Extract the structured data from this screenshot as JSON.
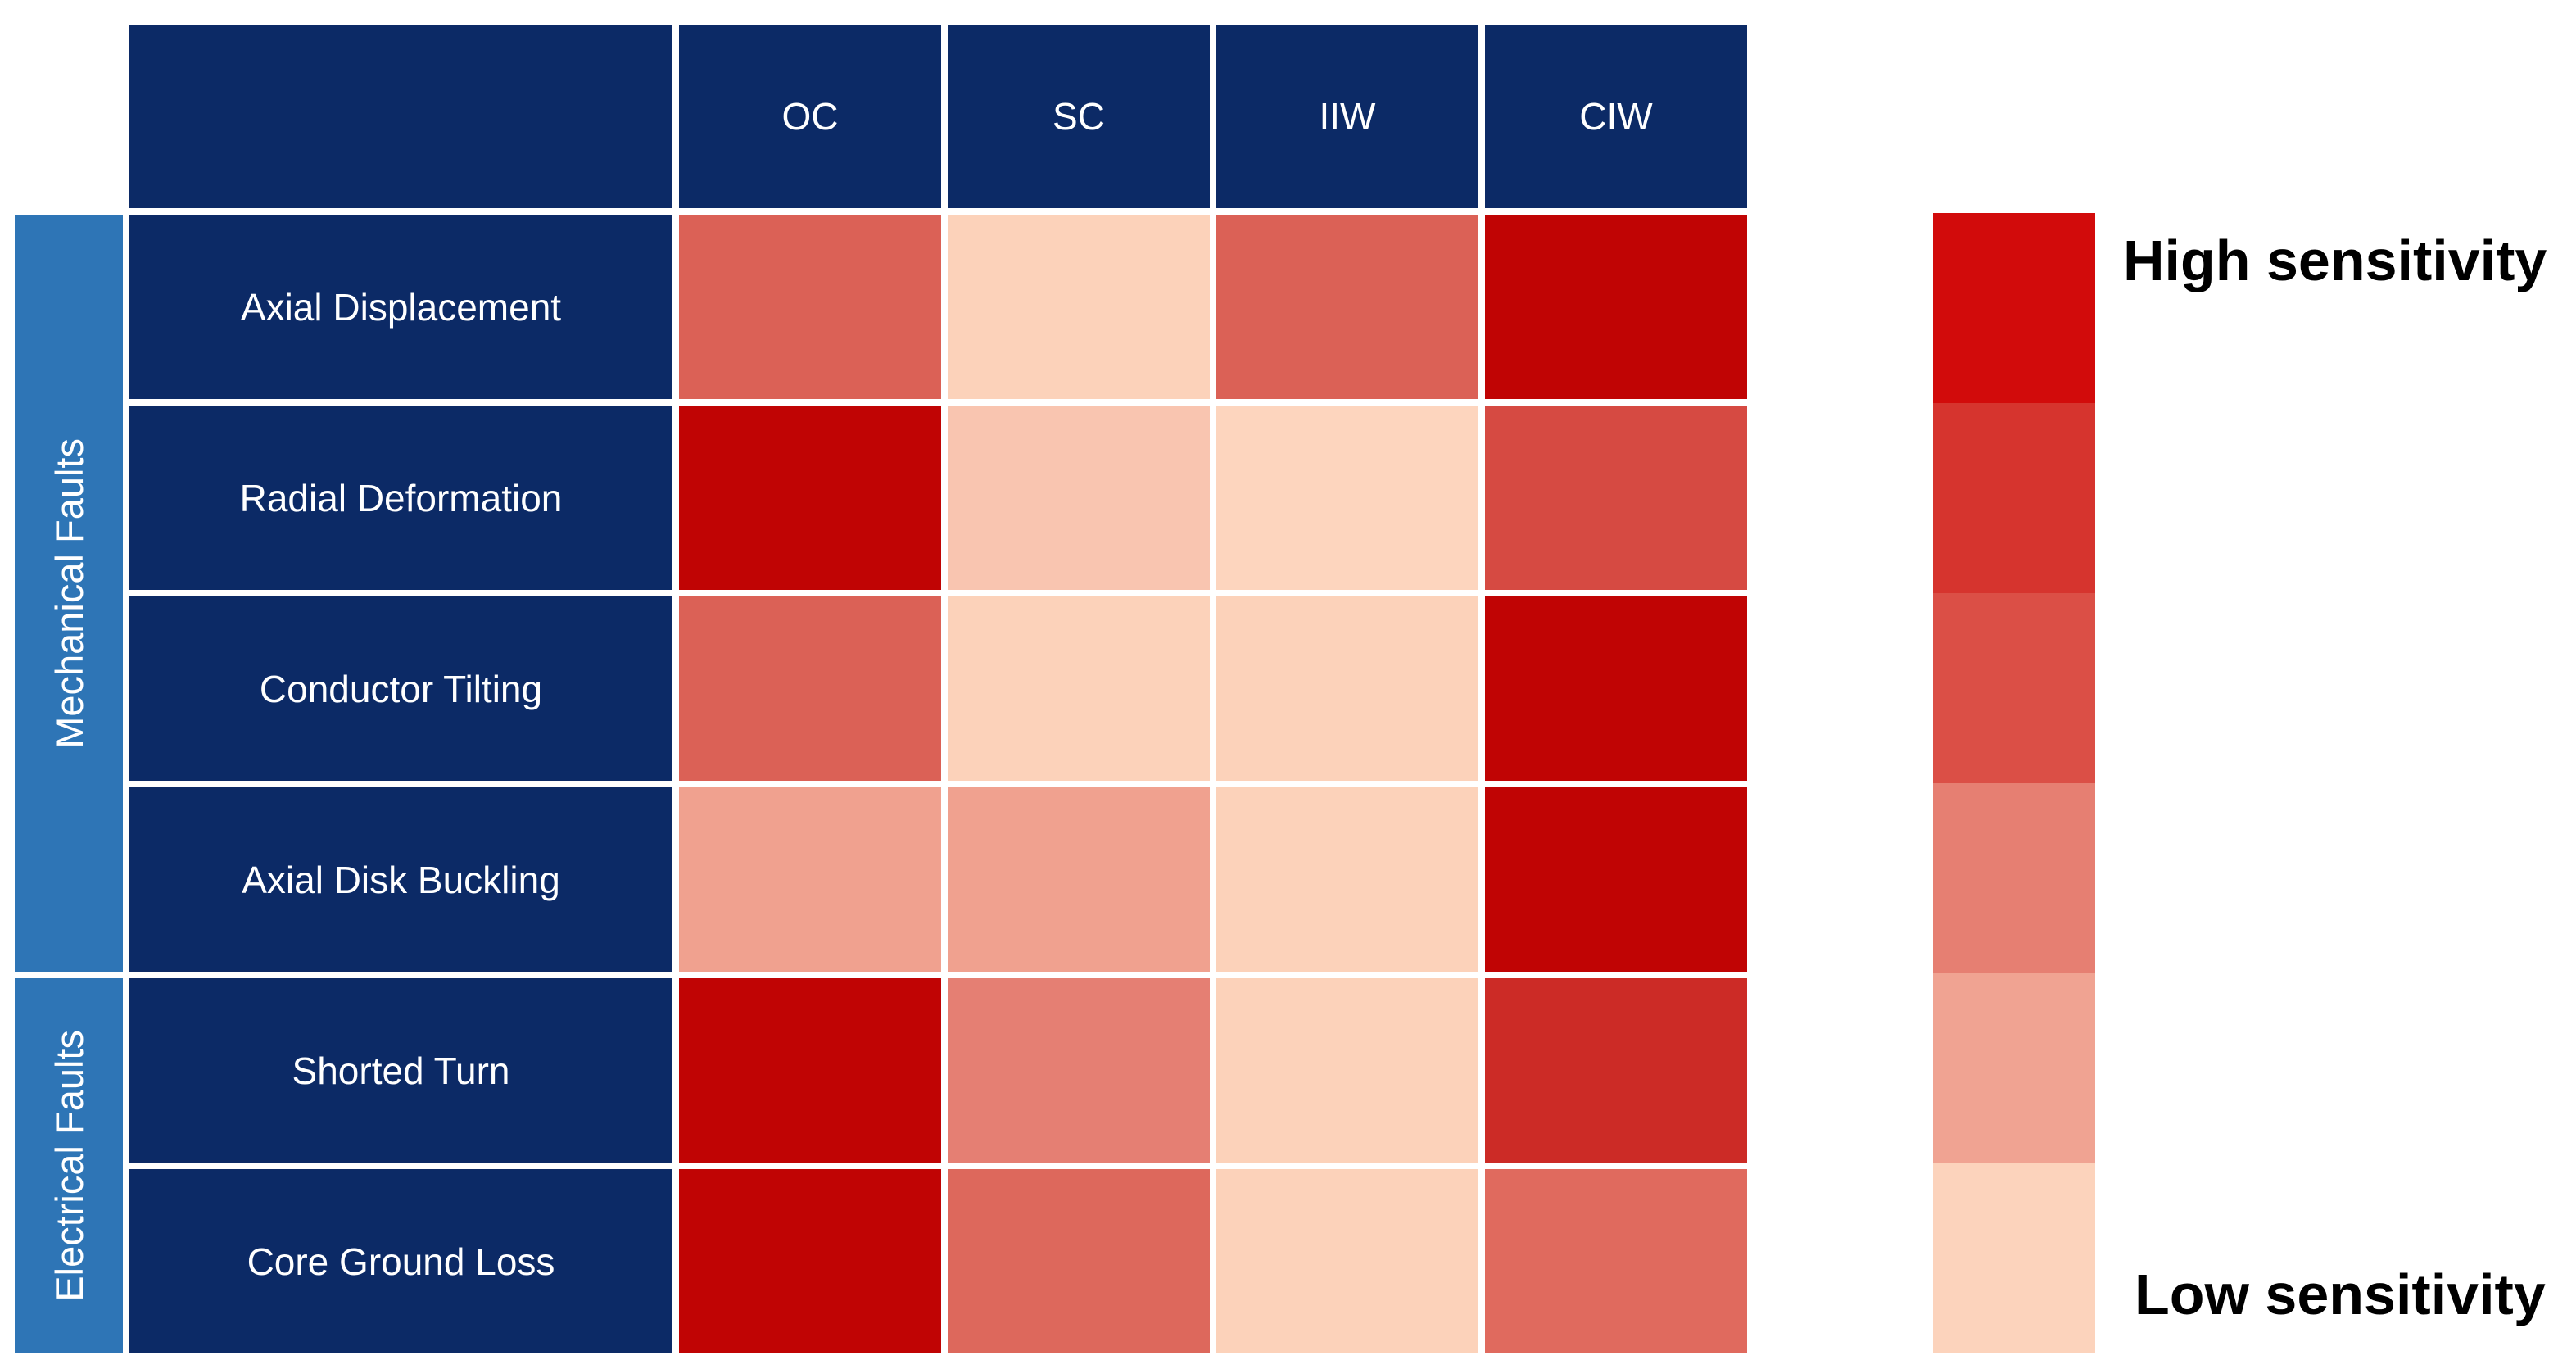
{
  "table": {
    "corner_label": "",
    "columns": [
      "OC",
      "SC",
      "IIW",
      "CIW"
    ],
    "groups": [
      {
        "label": "Mechanical Faults",
        "rowspan": 4
      },
      {
        "label": "Electrical Faults",
        "rowspan": 2
      }
    ],
    "rows": [
      {
        "label": "Axial Displacement",
        "colors": [
          "#DB6156",
          "#FCD2BA",
          "#DB6156",
          "#C00404"
        ]
      },
      {
        "label": "Radial Deformation",
        "colors": [
          "#C00404",
          "#F9C5B0",
          "#FDD5BE",
          "#D64A42"
        ]
      },
      {
        "label": "Conductor Tilting",
        "colors": [
          "#DB6156",
          "#FCD2BA",
          "#FCD2BA",
          "#C00404"
        ]
      },
      {
        "label": "Axial Disk Buckling",
        "colors": [
          "#F0A18F",
          "#F0A18F",
          "#FCD2BA",
          "#C00404"
        ]
      },
      {
        "label": "Shorted Turn",
        "colors": [
          "#C00404",
          "#E57F73",
          "#FCD2BA",
          "#CC2B26"
        ]
      },
      {
        "label": "Core Ground Loss",
        "colors": [
          "#C00404",
          "#DD685C",
          "#FCD2BA",
          "#E06A5E"
        ]
      }
    ]
  },
  "legend": {
    "high_label": "High sensitivity",
    "low_label": "Low sensitivity",
    "colorbar_colors": [
      "#D20B0B",
      "#D6342E",
      "#DB4F46",
      "#E67F72",
      "#F0A392",
      "#FCD3BC"
    ]
  },
  "colors": {
    "header_navy": "#0C2A66",
    "group_blue": "#2E75B6",
    "grid_line_white": "#FFFFFF",
    "legend_text": "#000000",
    "high_red": "#C00404",
    "low_pink": "#FCD2BA"
  },
  "chart_data": {
    "type": "heatmap",
    "title": "",
    "x_categories": [
      "OC",
      "SC",
      "IIW",
      "CIW"
    ],
    "y_categories": [
      "Axial Displacement",
      "Radial Deformation",
      "Conductor Tilting",
      "Axial Disk Buckling",
      "Shorted Turn",
      "Core Ground Loss"
    ],
    "row_groups": [
      {
        "label": "Mechanical Faults",
        "rows": [
          "Axial Displacement",
          "Radial Deformation",
          "Conductor Tilting",
          "Axial Disk Buckling"
        ]
      },
      {
        "label": "Electrical Faults",
        "rows": [
          "Shorted Turn",
          "Core Ground Loss"
        ]
      }
    ],
    "values_scale": "estimated relative sensitivity read from cell color, 1 = low, 10 = high (no numeric values printed in figure)",
    "values": [
      [
        6,
        1,
        6,
        10
      ],
      [
        10,
        2,
        1,
        7
      ],
      [
        6,
        1,
        1,
        10
      ],
      [
        3,
        3,
        1,
        10
      ],
      [
        10,
        4,
        1,
        8
      ],
      [
        10,
        5,
        1,
        5
      ]
    ],
    "cell_colors": [
      [
        "#DB6156",
        "#FCD2BA",
        "#DB6156",
        "#C00404"
      ],
      [
        "#C00404",
        "#F9C5B0",
        "#FDD5BE",
        "#D64A42"
      ],
      [
        "#DB6156",
        "#FCD2BA",
        "#FCD2BA",
        "#C00404"
      ],
      [
        "#F0A18F",
        "#F0A18F",
        "#FCD2BA",
        "#C00404"
      ],
      [
        "#C00404",
        "#E57F73",
        "#FCD2BA",
        "#CC2B26"
      ],
      [
        "#C00404",
        "#DD685C",
        "#FCD2BA",
        "#E06A5E"
      ]
    ],
    "legend": {
      "position": "right",
      "high_label": "High sensitivity",
      "low_label": "Low sensitivity",
      "colorbar_steps_top_to_bottom": [
        "#D20B0B",
        "#D6342E",
        "#DB4F46",
        "#E67F72",
        "#F0A392",
        "#FCD3BC"
      ]
    },
    "grid": "white gridlines between cells"
  }
}
